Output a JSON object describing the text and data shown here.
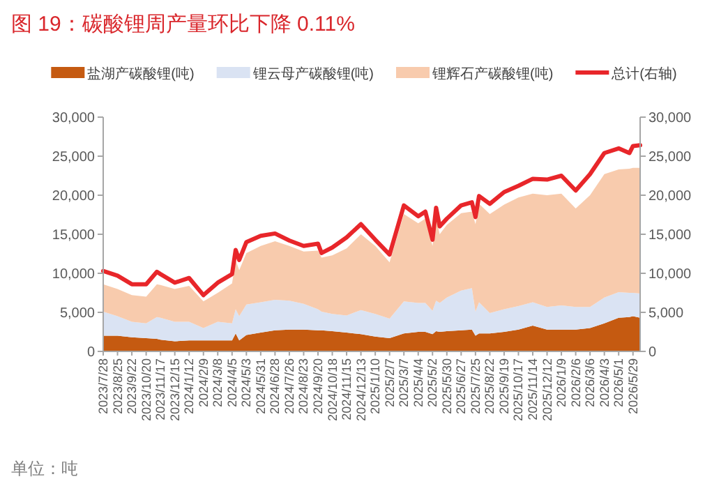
{
  "chart_data": {
    "type": "area",
    "stacked": true,
    "title": "图 19：碳酸锂周产量环比下降 0.11%",
    "annotations": [
      "单位：吨"
    ],
    "legend": "top",
    "x": [
      "2023-07-28",
      "2023-08-25",
      "2023-09-22",
      "2023-10-20",
      "2023-11-10",
      "2023-11-17",
      "2023-12-15",
      "2024-01-12",
      "2024-02-09",
      "2024-03-08",
      "2024-04-05",
      "2024-04-12",
      "2024-04-19",
      "2024-05-03",
      "2024-05-31",
      "2024-06-28",
      "2024-07-26",
      "2024-08-23",
      "2024-09-20",
      "2024-09-27",
      "2024-10-18",
      "2024-11-15",
      "2024-12-13",
      "2025-01-10",
      "2025-02-07",
      "2025-03-07",
      "2025-04-04",
      "2025-04-18",
      "2025-05-02",
      "2025-05-09",
      "2025-05-16",
      "2025-05-30",
      "2025-06-27",
      "2025-07-18",
      "2025-07-25",
      "2025-08-01",
      "2025-08-22",
      "2025-09-19",
      "2025-10-17",
      "2025-11-14",
      "2025-12-12",
      "2026-01-09",
      "2026-02-06",
      "2026-03-06",
      "2026-04-03",
      "2026-05-01",
      "2026-05-22",
      "2026-05-29",
      "2026-06-12"
    ],
    "series": [
      {
        "name": "盐湖产碳酸锂(吨)",
        "color": "#c55a11",
        "values": [
          2000,
          2000,
          1800,
          1700,
          1600,
          1500,
          1300,
          1400,
          1400,
          1400,
          1400,
          2300,
          1400,
          2100,
          2400,
          2700,
          2800,
          2800,
          2700,
          2700,
          2600,
          2400,
          2200,
          1900,
          1700,
          2300,
          2500,
          2500,
          2200,
          2600,
          2500,
          2600,
          2700,
          2800,
          2000,
          2300,
          2300,
          2500,
          2800,
          3300,
          2800,
          2800,
          2800,
          3000,
          3600,
          4300,
          4400,
          4500,
          4300
        ]
      },
      {
        "name": "锂云母产碳酸锂(吨)",
        "color": "#dae3f3",
        "values": [
          3100,
          2500,
          2000,
          1900,
          2800,
          2800,
          2500,
          2400,
          1600,
          2400,
          2200,
          3100,
          3100,
          3900,
          3900,
          3900,
          3700,
          3300,
          2700,
          2400,
          2200,
          2200,
          3100,
          2900,
          2500,
          4100,
          3700,
          3700,
          3000,
          3900,
          3700,
          4300,
          5100,
          5300,
          3100,
          4000,
          2600,
          2900,
          3000,
          3000,
          2900,
          3100,
          2900,
          2700,
          3300,
          3300,
          3100,
          3000,
          3100
        ]
      },
      {
        "name": "锂辉石产碳酸锂(吨)",
        "color": "#f8cbad",
        "values": [
          3500,
          3500,
          3400,
          3400,
          4200,
          4200,
          4200,
          4600,
          3400,
          3700,
          5100,
          6300,
          5900,
          6600,
          7200,
          7500,
          7000,
          6700,
          7500,
          6900,
          7500,
          8600,
          9700,
          8700,
          7200,
          11200,
          10200,
          10800,
          8300,
          10600,
          8800,
          9300,
          9900,
          9800,
          11200,
          12600,
          12700,
          13400,
          13900,
          13900,
          14300,
          14300,
          12600,
          14300,
          15800,
          15700,
          15900,
          16000,
          16100
        ]
      },
      {
        "name": "总计(右轴)",
        "type": "line",
        "axis": "y2",
        "color": "#e8262a",
        "values": [
          10300,
          9700,
          8600,
          8600,
          10200,
          9900,
          8800,
          9400,
          7200,
          8800,
          9900,
          13000,
          11700,
          14000,
          14800,
          15100,
          14200,
          13500,
          13800,
          12600,
          13300,
          14600,
          16300,
          14300,
          12400,
          18700,
          17300,
          17900,
          14300,
          18400,
          16000,
          17000,
          18700,
          19100,
          17200,
          19900,
          18900,
          20400,
          21200,
          22100,
          22000,
          22500,
          20600,
          22700,
          25400,
          26000,
          25400,
          26300,
          26400
        ]
      }
    ],
    "xlim": [
      "2023-07-28",
      "2026-06-12"
    ],
    "xticks": [
      {
        "value": "2023-07-28",
        "label": "2023/7/28"
      },
      {
        "value": "2023-08-25",
        "label": "2023/8/25"
      },
      {
        "value": "2023-09-22",
        "label": "2023/9/22"
      },
      {
        "value": "2023-10-20",
        "label": "2023/10/20"
      },
      {
        "value": "2023-11-17",
        "label": "2023/11/17"
      },
      {
        "value": "2023-12-15",
        "label": "2023/12/15"
      },
      {
        "value": "2024-01-12",
        "label": "2024/1/12"
      },
      {
        "value": "2024-02-09",
        "label": "2024/2/9"
      },
      {
        "value": "2024-03-08",
        "label": "2024/3/8"
      },
      {
        "value": "2024-04-05",
        "label": "2024/4/5"
      },
      {
        "value": "2024-05-03",
        "label": "2024/5/3"
      },
      {
        "value": "2024-05-31",
        "label": "2024/5/31"
      },
      {
        "value": "2024-06-28",
        "label": "2024/6/28"
      },
      {
        "value": "2024-07-26",
        "label": "2024/7/26"
      },
      {
        "value": "2024-08-23",
        "label": "2024/8/23"
      },
      {
        "value": "2024-09-20",
        "label": "2024/9/20"
      },
      {
        "value": "2024-10-18",
        "label": "2024/10/18"
      },
      {
        "value": "2024-11-15",
        "label": "2024/11/15"
      },
      {
        "value": "2024-12-13",
        "label": "2024/12/13"
      },
      {
        "value": "2025-01-10",
        "label": "2025/1/10"
      },
      {
        "value": "2025-02-07",
        "label": "2025/2/7"
      },
      {
        "value": "2025-03-07",
        "label": "2025/3/7"
      },
      {
        "value": "2025-04-04",
        "label": "2025/4/4"
      },
      {
        "value": "2025-05-02",
        "label": "2025/5/2"
      },
      {
        "value": "2025-05-30",
        "label": "2025/5/30"
      },
      {
        "value": "2025-06-27",
        "label": "2025/6/27"
      },
      {
        "value": "2025-07-25",
        "label": "2025/7/25"
      },
      {
        "value": "2025-08-22",
        "label": "2025/8/22"
      },
      {
        "value": "2025-09-19",
        "label": "2025/9/19"
      },
      {
        "value": "2025-10-17",
        "label": "2025/10/17"
      },
      {
        "value": "2025-11-14",
        "label": "2025/11/14"
      },
      {
        "value": "2025-12-12",
        "label": "2025/12/12"
      },
      {
        "value": "2026-01-09",
        "label": "2026/1/9"
      },
      {
        "value": "2026-02-06",
        "label": "2026/2/6"
      },
      {
        "value": "2026-03-06",
        "label": "2026/3/6"
      },
      {
        "value": "2026-04-03",
        "label": "2026/4/3"
      },
      {
        "value": "2026-05-01",
        "label": "2026/5/1"
      },
      {
        "value": "2026-05-29",
        "label": "2026/5/29"
      }
    ],
    "ylim": [
      0,
      30000
    ],
    "yticks": [
      0,
      {
        "value": 5000,
        "label": "5,000"
      },
      {
        "value": 10000,
        "label": "10,000"
      },
      {
        "value": 15000,
        "label": "15,000"
      },
      {
        "value": 20000,
        "label": "20,000"
      },
      {
        "value": 25000,
        "label": "25,000"
      },
      {
        "value": 30000,
        "label": "30,000"
      }
    ],
    "y2lim": [
      0,
      30000
    ],
    "y2ticks": [
      0,
      {
        "value": 5000,
        "label": "5,000"
      },
      {
        "value": 10000,
        "label": "10,000"
      },
      {
        "value": 15000,
        "label": "15,000"
      },
      {
        "value": 20000,
        "label": "20,000"
      },
      {
        "value": 25000,
        "label": "25,000"
      },
      {
        "value": 30000,
        "label": "30,000"
      }
    ]
  }
}
